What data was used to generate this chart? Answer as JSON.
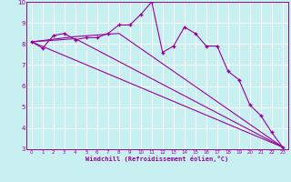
{
  "xlabel": "Windchill (Refroidissement éolien,°C)",
  "x": [
    0,
    1,
    2,
    3,
    4,
    5,
    6,
    7,
    8,
    9,
    10,
    11,
    12,
    13,
    14,
    15,
    16,
    17,
    18,
    19,
    20,
    21,
    22,
    23
  ],
  "main_line": [
    8.1,
    7.8,
    8.4,
    8.5,
    8.2,
    8.3,
    8.3,
    8.5,
    8.9,
    8.9,
    9.4,
    10.0,
    7.6,
    7.9,
    8.8,
    8.5,
    7.9,
    7.9,
    6.7,
    6.3,
    5.1,
    4.6,
    3.8,
    3.1
  ],
  "trend_lines": [
    {
      "x": [
        0,
        23
      ],
      "y": [
        8.1,
        3.1
      ]
    },
    {
      "x": [
        0,
        4,
        23
      ],
      "y": [
        8.1,
        8.25,
        3.1
      ]
    },
    {
      "x": [
        0,
        4,
        8,
        23
      ],
      "y": [
        8.1,
        8.35,
        8.5,
        3.1
      ]
    }
  ],
  "bg_color": "#c8f0f0",
  "line_color": "#990099",
  "grid_color": "#ffffff",
  "ylim": [
    3,
    10
  ],
  "xlim": [
    -0.5,
    23.5
  ],
  "yticks": [
    3,
    4,
    5,
    6,
    7,
    8,
    9,
    10
  ],
  "xticks": [
    0,
    1,
    2,
    3,
    4,
    5,
    6,
    7,
    8,
    9,
    10,
    11,
    12,
    13,
    14,
    15,
    16,
    17,
    18,
    19,
    20,
    21,
    22,
    23
  ]
}
